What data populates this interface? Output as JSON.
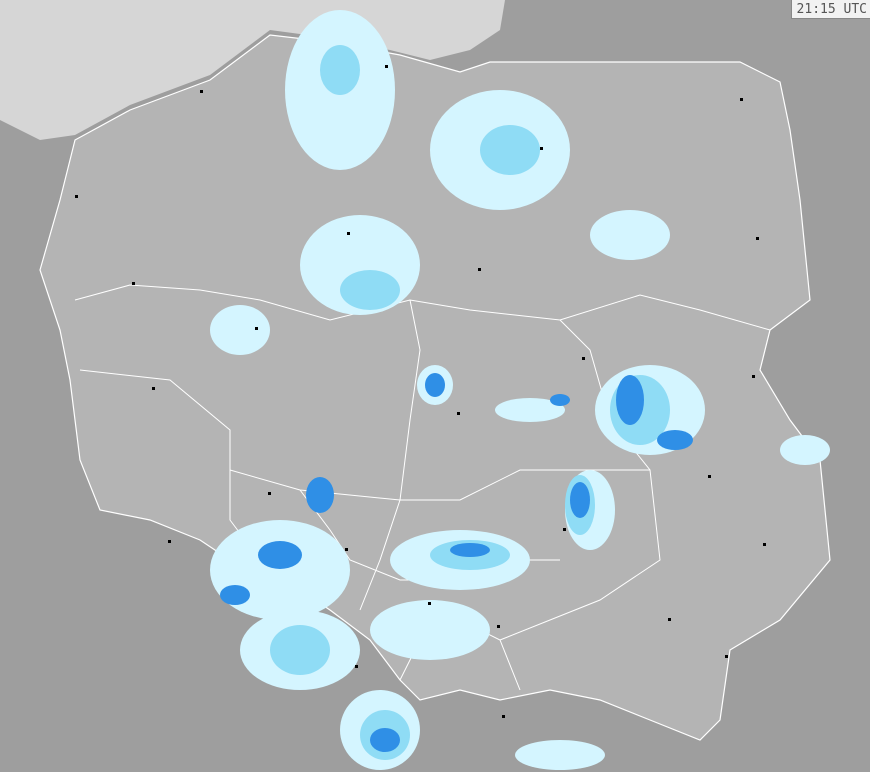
{
  "timestamp": "21:15 UTC",
  "colors": {
    "sea": "#d6d6d6",
    "poland": "#b4b4b4",
    "neighbors": "#9e9e9e",
    "borders": "#ffffff",
    "precip_light": "#d4f5ff",
    "precip_medium": "#8fdcf5",
    "precip_heavy": "#2f8fe6"
  },
  "legend": []
}
